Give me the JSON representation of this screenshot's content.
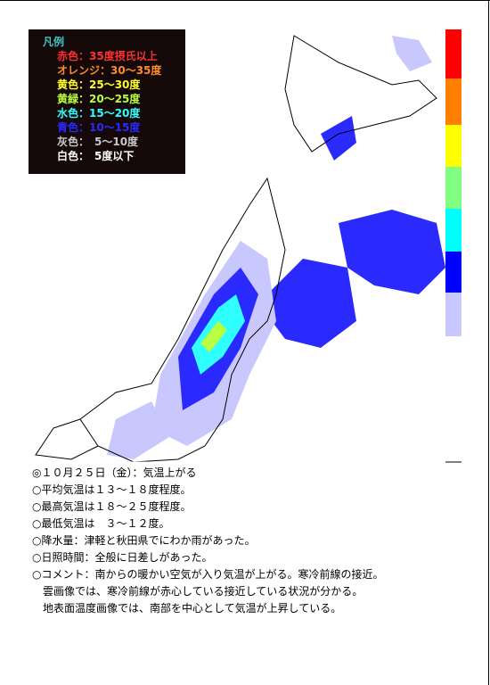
{
  "legend": {
    "title": "凡例",
    "items": [
      {
        "label": "赤色：35度摂氏以上",
        "color": "#ff3030"
      },
      {
        "label": "オレンジ：30〜35度",
        "color": "#ff8c2a"
      },
      {
        "label": "黄色：25〜30度",
        "color": "#ffff30"
      },
      {
        "label": "黄緑：20〜25度",
        "color": "#b8ff40"
      },
      {
        "label": "水色：15〜20度",
        "color": "#30ffff"
      },
      {
        "label": "青色：10〜15度",
        "color": "#2a2aff"
      },
      {
        "label": "灰色：　5〜10度",
        "color": "#c8c8c8"
      },
      {
        "label": "白色：　5度以下",
        "color": "#ffffff"
      }
    ]
  },
  "notes": {
    "lines": [
      "◎１０月２５日（金）：気温上がる",
      "○平均気温は１３〜１８度程度。",
      "○最高気温は１８〜２５度程度。",
      "○最低気温は　３〜１２度。",
      "○降水量：津軽と秋田県でにわか雨があった。",
      "○日照時間：全般に日差しがあった。",
      "○コメント：南からの暖かい空気が入り気温が上がる。寒冷前線の接近。",
      "　雲画像では、寒冷前線が赤心している接近している状況が分かる。",
      "　地表面温度画像では、南部を中心として気温が上昇している。"
    ]
  }
}
